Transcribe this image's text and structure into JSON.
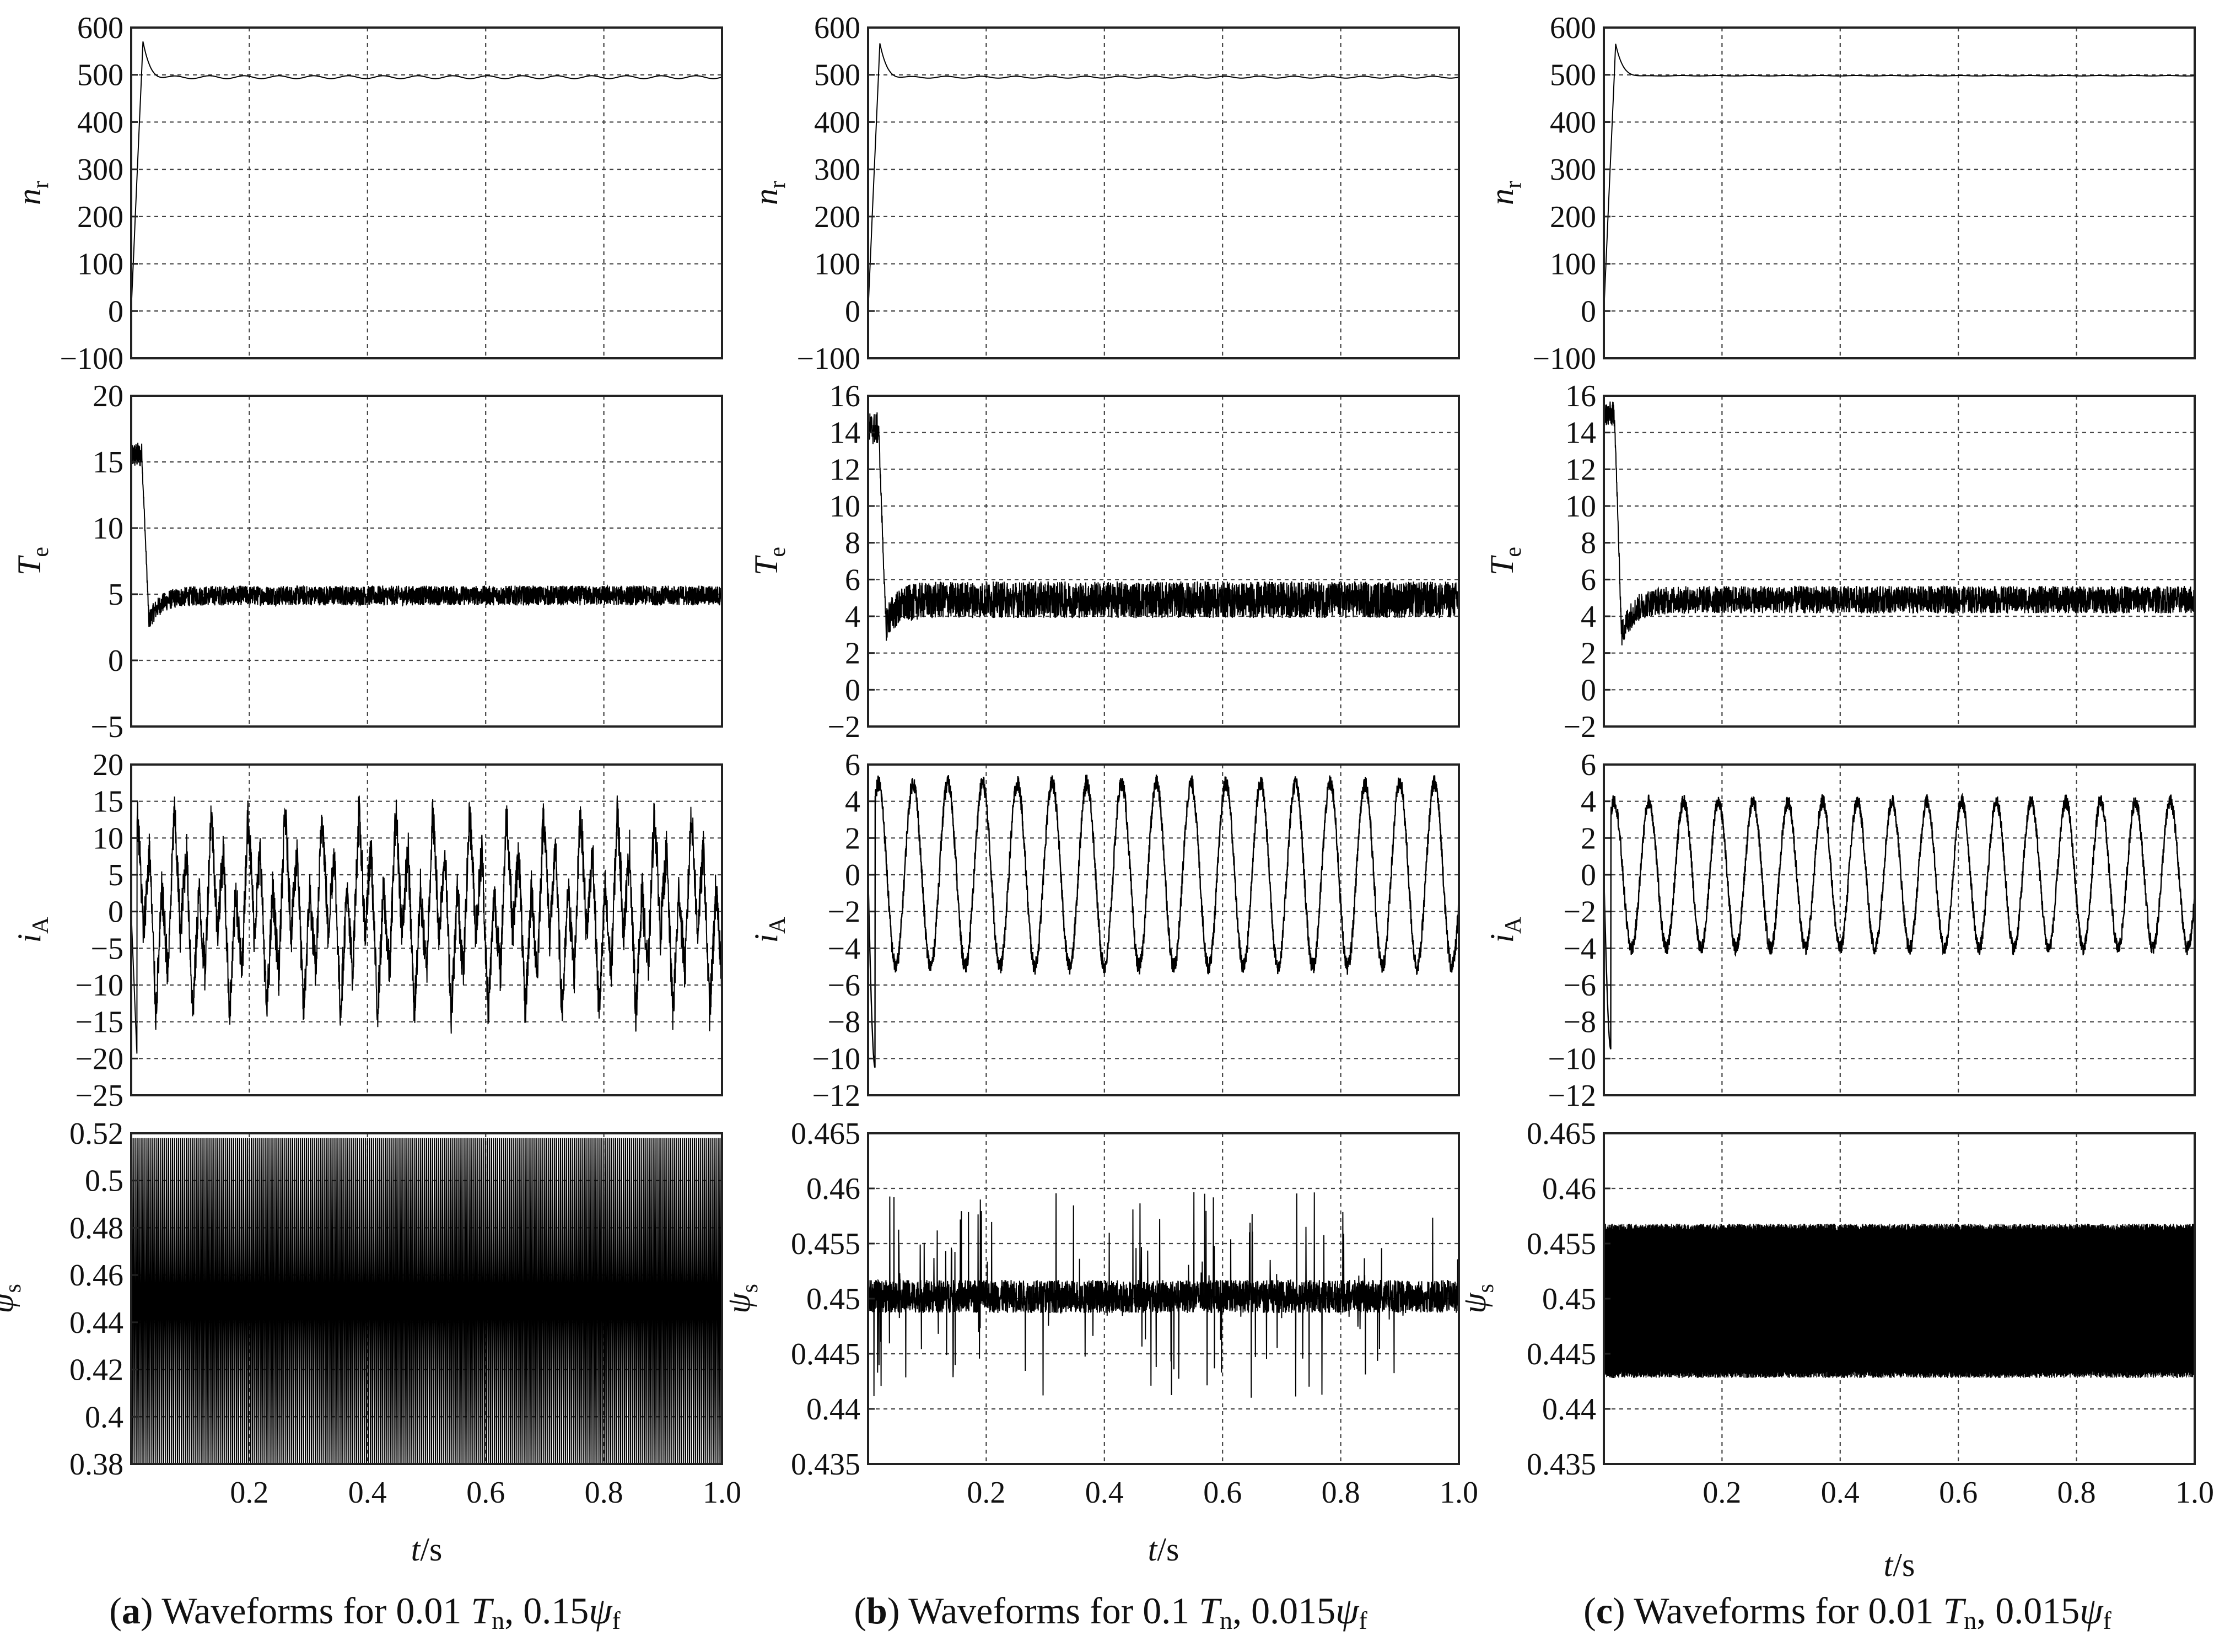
{
  "x_axis": {
    "label_var": "t",
    "label_unit": "/s",
    "ticks": [
      0.2,
      0.4,
      0.6,
      0.8,
      1.0
    ],
    "tick_labels": [
      "0.2",
      "0.4",
      "0.6",
      "0.8",
      "1.0"
    ],
    "range": [
      0,
      1.0
    ]
  },
  "rows": [
    {
      "key": "nr",
      "label_main": "n",
      "label_sub": "r"
    },
    {
      "key": "Te",
      "label_main": "T",
      "label_sub": "e"
    },
    {
      "key": "iA",
      "label_main": "i",
      "label_sub": "A"
    },
    {
      "key": "psis",
      "label_main": "ψ",
      "label_sub": "s"
    }
  ],
  "captions": [
    {
      "letter": "a",
      "text": " Waveforms for 0.01 ",
      "T": "T",
      "Tsub": "n",
      "sep": ", ",
      "coef": "0.15",
      "psi": "ψ",
      "psisub": "f"
    },
    {
      "letter": "b",
      "text": " Waveforms for 0.1 ",
      "T": "T",
      "Tsub": "n",
      "sep": ", ",
      "coef": "0.015",
      "psi": "ψ",
      "psisub": "f"
    },
    {
      "letter": "c",
      "text": " Waveforms for 0.01 ",
      "T": "T",
      "Tsub": "n",
      "sep": ", ",
      "coef": "0.015",
      "psi": "ψ",
      "psisub": "f"
    }
  ],
  "chart_data": [
    {
      "id": "a-nr",
      "type": "line",
      "ylabel": "nr",
      "ylim": [
        -100,
        600
      ],
      "yticks": [
        -100,
        0,
        100,
        200,
        300,
        400,
        500,
        600
      ],
      "ytick_labels": [
        "−100",
        "0",
        "100",
        "200",
        "300",
        "400",
        "500",
        "600"
      ],
      "xlim": [
        0,
        1.0
      ],
      "grid": true,
      "signal": "speed",
      "params": {
        "steady": 495,
        "peak": 568,
        "peak_t": 0.02,
        "ripple": 3
      }
    },
    {
      "id": "b-nr",
      "type": "line",
      "ylabel": "nr",
      "ylim": [
        -100,
        600
      ],
      "yticks": [
        -100,
        0,
        100,
        200,
        300,
        400,
        500,
        600
      ],
      "ytick_labels": [
        "−100",
        "0",
        "100",
        "200",
        "300",
        "400",
        "500",
        "600"
      ],
      "xlim": [
        0,
        1.0
      ],
      "grid": true,
      "signal": "speed",
      "params": {
        "steady": 495,
        "peak": 565,
        "peak_t": 0.02,
        "ripple": 2
      }
    },
    {
      "id": "c-nr",
      "type": "line",
      "ylabel": "nr",
      "ylim": [
        -100,
        600
      ],
      "yticks": [
        -100,
        0,
        100,
        200,
        300,
        400,
        500,
        600
      ],
      "ytick_labels": [
        "−100",
        "0",
        "100",
        "200",
        "300",
        "400",
        "500",
        "600"
      ],
      "xlim": [
        0,
        1.0
      ],
      "grid": true,
      "signal": "speed",
      "params": {
        "steady": 498,
        "peak": 565,
        "peak_t": 0.02,
        "ripple": 0.5
      }
    },
    {
      "id": "a-Te",
      "type": "line",
      "ylabel": "Te",
      "ylim": [
        -5,
        20
      ],
      "yticks": [
        -5,
        0,
        5,
        10,
        15,
        20
      ],
      "ytick_labels": [
        "−5",
        "0",
        "5",
        "10",
        "15",
        "20"
      ],
      "xlim": [
        0,
        1.0
      ],
      "grid": true,
      "signal": "torque",
      "params": {
        "start": 15.5,
        "start_band": 1.0,
        "dip": 3.0,
        "mean": 4.9,
        "band": 0.75
      }
    },
    {
      "id": "b-Te",
      "type": "line",
      "ylabel": "Te",
      "ylim": [
        -2,
        16
      ],
      "yticks": [
        -2,
        0,
        2,
        4,
        6,
        8,
        10,
        12,
        14,
        16
      ],
      "ytick_labels": [
        "−2",
        "0",
        "2",
        "4",
        "6",
        "8",
        "10",
        "12",
        "14",
        "16"
      ],
      "xlim": [
        0,
        1.0
      ],
      "grid": true,
      "signal": "torque",
      "params": {
        "start": 14.2,
        "start_band": 0.9,
        "dip": 3.6,
        "mean": 4.9,
        "band": 1.0
      }
    },
    {
      "id": "c-Te",
      "type": "line",
      "ylabel": "Te",
      "ylim": [
        -2,
        16
      ],
      "yticks": [
        -2,
        0,
        2,
        4,
        6,
        8,
        10,
        12,
        14,
        16
      ],
      "ytick_labels": [
        "−2",
        "0",
        "2",
        "4",
        "6",
        "8",
        "10",
        "12",
        "14",
        "16"
      ],
      "xlim": [
        0,
        1.0
      ],
      "grid": true,
      "signal": "torque",
      "params": {
        "start": 15.0,
        "start_band": 0.7,
        "dip": 3.0,
        "mean": 4.9,
        "band": 0.75
      }
    },
    {
      "id": "a-iA",
      "type": "line",
      "ylabel": "iA",
      "ylim": [
        -25,
        20
      ],
      "yticks": [
        -25,
        -20,
        -15,
        -10,
        -5,
        0,
        5,
        10,
        15,
        20
      ],
      "ytick_labels": [
        "−25",
        "−20",
        "−15",
        "−10",
        "−5",
        "0",
        "5",
        "10",
        "15",
        "20"
      ],
      "xlim": [
        0,
        1.0
      ],
      "grid": true,
      "signal": "spiky_current",
      "params": {
        "amp": 17,
        "freq": 16,
        "start_min": -20
      }
    },
    {
      "id": "b-iA",
      "type": "line",
      "ylabel": "iA",
      "ylim": [
        -12,
        6
      ],
      "yticks": [
        -12,
        -10,
        -8,
        -6,
        -4,
        -2,
        0,
        2,
        4,
        6
      ],
      "ytick_labels": [
        "−12",
        "−10",
        "−8",
        "−6",
        "−4",
        "−2",
        "0",
        "2",
        "4",
        "6"
      ],
      "xlim": [
        0,
        1.0
      ],
      "grid": true,
      "signal": "sine_current",
      "params": {
        "amp": 5.0,
        "freq": 17,
        "band": 0.45,
        "start_min": -10.5
      }
    },
    {
      "id": "c-iA",
      "type": "line",
      "ylabel": "iA",
      "ylim": [
        -12,
        6
      ],
      "yticks": [
        -12,
        -10,
        -8,
        -6,
        -4,
        -2,
        0,
        2,
        4,
        6
      ],
      "ytick_labels": [
        "−12",
        "−10",
        "−8",
        "−6",
        "−4",
        "−2",
        "0",
        "2",
        "4",
        "6"
      ],
      "xlim": [
        0,
        1.0
      ],
      "grid": true,
      "signal": "sine_current",
      "params": {
        "amp": 4.0,
        "freq": 17,
        "band": 0.4,
        "start_min": -9.5
      }
    },
    {
      "id": "a-psis",
      "type": "line",
      "ylabel": "psis",
      "ylim": [
        0.38,
        0.52
      ],
      "yticks": [
        0.38,
        0.4,
        0.42,
        0.44,
        0.46,
        0.48,
        0.5,
        0.52
      ],
      "ytick_labels": [
        "0.38",
        "0.4",
        "0.42",
        "0.44",
        "0.46",
        "0.48",
        "0.5",
        "0.52"
      ],
      "xlim": [
        0,
        1.0
      ],
      "grid": true,
      "signal": "flux_saw",
      "params": {
        "min": 0.38,
        "max": 0.518,
        "cycles": 100
      }
    },
    {
      "id": "b-psis",
      "type": "line",
      "ylabel": "psis",
      "ylim": [
        0.435,
        0.465
      ],
      "yticks": [
        0.435,
        0.44,
        0.445,
        0.45,
        0.455,
        0.46,
        0.465
      ],
      "ytick_labels": [
        "0.435",
        "0.44",
        "0.445",
        "0.45",
        "0.455",
        "0.46",
        "0.465"
      ],
      "xlim": [
        0,
        1.0
      ],
      "grid": true,
      "signal": "flux_noise",
      "params": {
        "mean": 0.4502,
        "band": 0.0015,
        "spike": 0.0095
      }
    },
    {
      "id": "c-psis",
      "type": "line",
      "ylabel": "psis",
      "ylim": [
        0.435,
        0.465
      ],
      "yticks": [
        0.435,
        0.44,
        0.445,
        0.45,
        0.455,
        0.46,
        0.465
      ],
      "ytick_labels": [
        "0.435",
        "0.44",
        "0.445",
        "0.45",
        "0.455",
        "0.46",
        "0.465"
      ],
      "xlim": [
        0,
        1.0
      ],
      "grid": true,
      "signal": "flux_band",
      "params": {
        "min": 0.4428,
        "max": 0.4568
      }
    }
  ]
}
